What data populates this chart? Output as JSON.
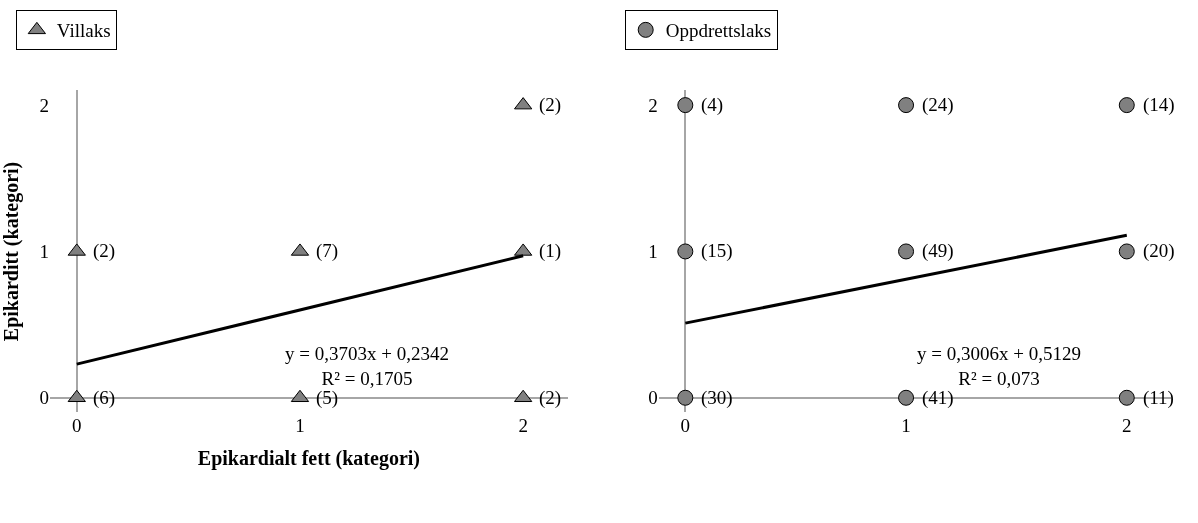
{
  "chart_data": [
    {
      "type": "scatter",
      "xlabel": "Epikardialt fett (kategori)",
      "ylabel": "Epikarditt (kategori)",
      "legend": "top left",
      "xlim": [
        -0.12,
        2.2
      ],
      "ylim": [
        -0.1,
        2.1
      ],
      "xticks": [
        0,
        1,
        2
      ],
      "yticks": [
        0,
        1,
        2
      ],
      "series": [
        {
          "name": "Villaks",
          "marker": "triangle",
          "color": "#808080",
          "x": [
            0,
            1,
            2,
            2,
            0,
            1,
            2
          ],
          "values": [
            1,
            1,
            2,
            1,
            0,
            0,
            0
          ]
        },
        {
          "type": "line",
          "line_style": "solid",
          "color": "#000000",
          "x": [
            0,
            2
          ],
          "values": [
            0.23,
            0.97
          ]
        }
      ],
      "annotations": [
        "y = 0,3703x + 0,2342\nR² = 0,1705",
        {
          "text": "(2)",
          "x": 0,
          "y": 1
        },
        {
          "text": "(7)",
          "x": 1,
          "y": 1
        },
        {
          "text": "(2)",
          "x": 2,
          "y": 2
        },
        {
          "text": "(1)",
          "x": 2,
          "y": 1
        },
        {
          "text": "(6)",
          "x": 0,
          "y": 0
        },
        {
          "text": "(5)",
          "x": 1,
          "y": 0
        },
        {
          "text": "(2)",
          "x": 2,
          "y": 0
        }
      ]
    },
    {
      "type": "scatter",
      "legend": "top left",
      "xlim": [
        -0.12,
        2.2
      ],
      "ylim": [
        -0.1,
        2.1
      ],
      "xticks": [
        0,
        1,
        2
      ],
      "yticks": [
        0,
        1,
        2
      ],
      "series": [
        {
          "name": "Oppdrettslaks",
          "marker": "circle",
          "color": "#808080",
          "x": [
            0,
            1,
            2,
            0,
            1,
            2,
            0,
            1,
            2
          ],
          "values": [
            2,
            2,
            2,
            1,
            1,
            1,
            0,
            0,
            0
          ]
        },
        {
          "type": "line",
          "line_style": "solid",
          "color": "#000000",
          "x": [
            0,
            2
          ],
          "values": [
            0.51,
            1.11
          ]
        }
      ],
      "annotations": [
        "y = 0,3006x + 0,5129\nR² = 0,073",
        {
          "text": "(4)",
          "x": 0,
          "y": 2
        },
        {
          "text": "(24)",
          "x": 1,
          "y": 2
        },
        {
          "text": "(14)",
          "x": 2,
          "y": 2
        },
        {
          "text": "(15)",
          "x": 0,
          "y": 1
        },
        {
          "text": "(49)",
          "x": 1,
          "y": 1
        },
        {
          "text": "(20)",
          "x": 2,
          "y": 1
        },
        {
          "text": "(30)",
          "x": 0,
          "y": 0
        },
        {
          "text": "(41)",
          "x": 1,
          "y": 0
        },
        {
          "text": "(11)",
          "x": 2,
          "y": 0
        }
      ]
    }
  ]
}
